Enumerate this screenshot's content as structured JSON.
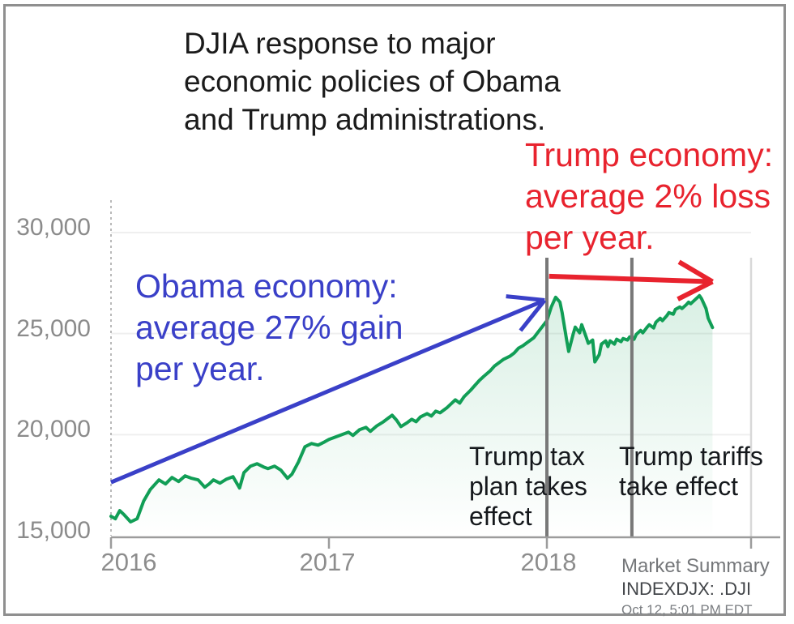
{
  "title": {
    "lines": [
      "DJIA response to major",
      "economic policies of Obama",
      "and Trump administrations."
    ]
  },
  "annotations": {
    "obama": {
      "lines": [
        "Obama economy:",
        "average 27% gain",
        "per year."
      ],
      "color": "#3a40c8"
    },
    "trump": {
      "lines": [
        "Trump economy:",
        "average 2% loss",
        "per year."
      ],
      "color": "#e8232e"
    },
    "tax_plan": {
      "lines": [
        "Trump tax",
        "plan takes",
        "effect"
      ],
      "color": "#15181c"
    },
    "tariffs": {
      "lines": [
        "Trump tariffs",
        "take effect"
      ],
      "color": "#15181c"
    }
  },
  "source": {
    "heading": "Market Summary",
    "ticker": "INDEXDJX: .DJI",
    "timestamp": "Oct 12, 5:01 PM EDT"
  },
  "chart_data": {
    "type": "line",
    "title": "DJIA response to major economic policies of Obama and Trump administrations.",
    "xlabel": "",
    "ylabel": "",
    "x_range": [
      2016,
      2018.94
    ],
    "y_range": [
      15000,
      30000
    ],
    "grid": true,
    "x_ticks": [
      2016,
      2017,
      2018
    ],
    "x_tick_labels": [
      "2016",
      "2017",
      "2018"
    ],
    "y_ticks": [
      15000,
      20000,
      25000,
      30000
    ],
    "y_tick_labels": [
      "15,000",
      "20,000",
      "25,000",
      "30,000"
    ],
    "series": [
      {
        "name": "DJIA",
        "color": "#119e56",
        "points": [
          [
            2016.0,
            15960
          ],
          [
            2016.02,
            15840
          ],
          [
            2016.04,
            16240
          ],
          [
            2016.06,
            16040
          ],
          [
            2016.09,
            15680
          ],
          [
            2016.12,
            15840
          ],
          [
            2016.15,
            16720
          ],
          [
            2016.18,
            17280
          ],
          [
            2016.22,
            17760
          ],
          [
            2016.25,
            17560
          ],
          [
            2016.28,
            17880
          ],
          [
            2016.31,
            17680
          ],
          [
            2016.34,
            17960
          ],
          [
            2016.37,
            17840
          ],
          [
            2016.4,
            17760
          ],
          [
            2016.43,
            17400
          ],
          [
            2016.45,
            17560
          ],
          [
            2016.47,
            17760
          ],
          [
            2016.5,
            17600
          ],
          [
            2016.53,
            17800
          ],
          [
            2016.56,
            17920
          ],
          [
            2016.59,
            17360
          ],
          [
            2016.61,
            18120
          ],
          [
            2016.64,
            18440
          ],
          [
            2016.67,
            18560
          ],
          [
            2016.7,
            18400
          ],
          [
            2016.72,
            18320
          ],
          [
            2016.75,
            18440
          ],
          [
            2016.78,
            18240
          ],
          [
            2016.81,
            17840
          ],
          [
            2016.83,
            18040
          ],
          [
            2016.86,
            18640
          ],
          [
            2016.89,
            19400
          ],
          [
            2016.92,
            19560
          ],
          [
            2016.95,
            19480
          ],
          [
            2016.98,
            19640
          ],
          [
            2017.0,
            19760
          ],
          [
            2017.03,
            19880
          ],
          [
            2017.06,
            20000
          ],
          [
            2017.09,
            20120
          ],
          [
            2017.11,
            19960
          ],
          [
            2017.14,
            20240
          ],
          [
            2017.17,
            20360
          ],
          [
            2017.19,
            20160
          ],
          [
            2017.22,
            20440
          ],
          [
            2017.25,
            20640
          ],
          [
            2017.27,
            20800
          ],
          [
            2017.29,
            20960
          ],
          [
            2017.31,
            20720
          ],
          [
            2017.33,
            20400
          ],
          [
            2017.36,
            20600
          ],
          [
            2017.38,
            20760
          ],
          [
            2017.4,
            20640
          ],
          [
            2017.42,
            20880
          ],
          [
            2017.45,
            21040
          ],
          [
            2017.47,
            20920
          ],
          [
            2017.49,
            21160
          ],
          [
            2017.51,
            21080
          ],
          [
            2017.54,
            21320
          ],
          [
            2017.56,
            21520
          ],
          [
            2017.58,
            21720
          ],
          [
            2017.6,
            21560
          ],
          [
            2017.62,
            21880
          ],
          [
            2017.65,
            22200
          ],
          [
            2017.67,
            22440
          ],
          [
            2017.69,
            22680
          ],
          [
            2017.71,
            22880
          ],
          [
            2017.74,
            23160
          ],
          [
            2017.76,
            23400
          ],
          [
            2017.78,
            23560
          ],
          [
            2017.8,
            23720
          ],
          [
            2017.83,
            23880
          ],
          [
            2017.85,
            24040
          ],
          [
            2017.87,
            24280
          ],
          [
            2017.89,
            24400
          ],
          [
            2017.91,
            24560
          ],
          [
            2017.94,
            24800
          ],
          [
            2017.96,
            25080
          ],
          [
            2017.98,
            25360
          ],
          [
            2018.0,
            25640
          ],
          [
            2018.02,
            26320
          ],
          [
            2018.04,
            26800
          ],
          [
            2018.06,
            26560
          ],
          [
            2018.07,
            26040
          ],
          [
            2018.09,
            24720
          ],
          [
            2018.1,
            24120
          ],
          [
            2018.12,
            24960
          ],
          [
            2018.13,
            25320
          ],
          [
            2018.15,
            25040
          ],
          [
            2018.16,
            25440
          ],
          [
            2018.18,
            24840
          ],
          [
            2018.19,
            24520
          ],
          [
            2018.21,
            24680
          ],
          [
            2018.22,
            23600
          ],
          [
            2018.24,
            23960
          ],
          [
            2018.25,
            24480
          ],
          [
            2018.27,
            24640
          ],
          [
            2018.28,
            24360
          ],
          [
            2018.29,
            24640
          ],
          [
            2018.31,
            24480
          ],
          [
            2018.32,
            24720
          ],
          [
            2018.34,
            24600
          ],
          [
            2018.35,
            24760
          ],
          [
            2018.37,
            24680
          ],
          [
            2018.38,
            24840
          ],
          [
            2018.4,
            24720
          ],
          [
            2018.41,
            24960
          ],
          [
            2018.43,
            25160
          ],
          [
            2018.44,
            25040
          ],
          [
            2018.46,
            25320
          ],
          [
            2018.47,
            25440
          ],
          [
            2018.49,
            25280
          ],
          [
            2018.5,
            25560
          ],
          [
            2018.52,
            25760
          ],
          [
            2018.53,
            25640
          ],
          [
            2018.55,
            25880
          ],
          [
            2018.56,
            26040
          ],
          [
            2018.58,
            25960
          ],
          [
            2018.59,
            26200
          ],
          [
            2018.61,
            26320
          ],
          [
            2018.62,
            26240
          ],
          [
            2018.64,
            26440
          ],
          [
            2018.65,
            26560
          ],
          [
            2018.66,
            26480
          ],
          [
            2018.68,
            26680
          ],
          [
            2018.7,
            26880
          ],
          [
            2018.71,
            26720
          ],
          [
            2018.73,
            26240
          ],
          [
            2018.74,
            25760
          ],
          [
            2018.76,
            25300
          ]
        ]
      }
    ],
    "trend_arrows": [
      {
        "name": "obama-trend-arrow",
        "color": "#3a40c8",
        "width": 5,
        "from": [
          2016.0,
          17640
        ],
        "to": [
          2017.99,
          26650
        ]
      },
      {
        "name": "trump-trend-arrow",
        "color": "#e8232e",
        "width": 6,
        "from": [
          2018.01,
          27840
        ],
        "to": [
          2018.76,
          27570
        ]
      }
    ],
    "event_markers": [
      {
        "t": 2018.0,
        "label": "Trump tax plan takes effect"
      },
      {
        "t": 2018.39,
        "label": "Trump tariffs take effect"
      }
    ]
  }
}
